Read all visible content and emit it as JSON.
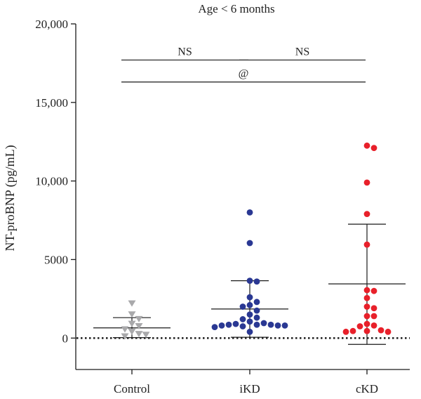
{
  "chart_data": {
    "type": "scatter",
    "title": "Age < 6 months",
    "ylabel": "NT-proBNP (pg/mL)",
    "xlabel": "",
    "categories": [
      "Control",
      "iKD",
      "cKD"
    ],
    "ylim": [
      -2000,
      20000
    ],
    "yticks": [
      0,
      5000,
      10000,
      15000,
      20000
    ],
    "ytick_labels": [
      "0",
      "5000",
      "10,000",
      "15,000",
      "20,000"
    ],
    "reference_line": {
      "y": 0,
      "style": "dotted"
    },
    "series": [
      {
        "category": "Control",
        "marker": "triangle-down",
        "color": "#a9a9ab",
        "values": [
          2200,
          1500,
          1200,
          900,
          750,
          550,
          400,
          250,
          200,
          100
        ],
        "mean": 650,
        "sd_upper": 1300,
        "sd_lower": 30
      },
      {
        "category": "iKD",
        "marker": "circle",
        "color": "#2a3893",
        "values": [
          8000,
          6050,
          3650,
          3600,
          2600,
          2300,
          2100,
          2000,
          1750,
          1500,
          1300,
          1200,
          1050,
          950,
          900,
          850,
          850,
          850,
          800,
          800,
          800,
          750,
          700,
          400
        ],
        "mean": 1850,
        "sd_upper": 3650,
        "sd_lower": 50
      },
      {
        "category": "cKD",
        "marker": "circle",
        "color": "#e8202a",
        "values": [
          12250,
          12100,
          9900,
          7900,
          5950,
          3050,
          3000,
          2550,
          2000,
          1900,
          1400,
          1400,
          900,
          800,
          750,
          500,
          450,
          450,
          400,
          400
        ],
        "mean": 3450,
        "sd_upper": 7250,
        "sd_lower": -400
      }
    ],
    "annotations": [
      {
        "text": "NS",
        "from": "Control",
        "to": "iKD",
        "y": 17700
      },
      {
        "text": "NS",
        "from": "iKD",
        "to": "cKD",
        "y": 17700
      },
      {
        "text": "@",
        "from": "Control",
        "to": "cKD",
        "y": 16300
      }
    ]
  }
}
